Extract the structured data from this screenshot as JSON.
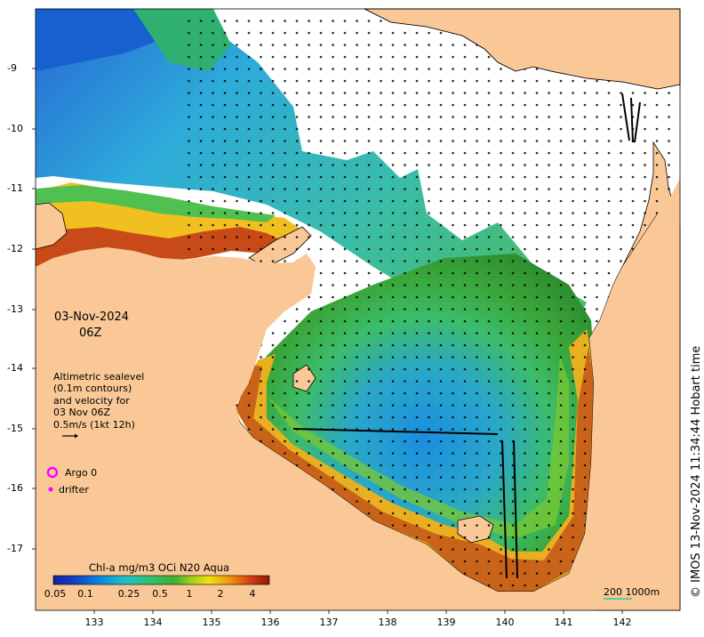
{
  "map": {
    "date_label": "03-Nov-2024",
    "time_label": "06Z",
    "legend_lines": [
      "Altimetric sealevel",
      "(0.1m contours)",
      "and velocity for",
      "03 Nov 06Z",
      "0.5m/s (1kt 12h)"
    ],
    "argo_label": "Argo 0",
    "drifter_label": "drifter",
    "colorbar_title": "Chl-a mg/m3 OCi N20 Aqua",
    "colorbar_ticks": [
      "0.05",
      "0.1",
      "0.25",
      "0.5",
      "1",
      "2",
      "4"
    ],
    "scale_label": "200  1000m",
    "copyright": "© IMOS 13-Nov-2024 11:34:44 Hobart time",
    "x_ticks": [
      "133",
      "134",
      "135",
      "136",
      "137",
      "138",
      "139",
      "140",
      "141",
      "142"
    ],
    "y_ticks": [
      "9",
      "10",
      "11",
      "12",
      "13",
      "14",
      "15",
      "16",
      "17"
    ],
    "colors": {
      "land": "#f9c896",
      "ocean_nodata": "#ffffff",
      "argo_marker": "#ff00ff",
      "drifter_marker": "#ff00ff",
      "scale_line": "#30c8a0"
    }
  }
}
